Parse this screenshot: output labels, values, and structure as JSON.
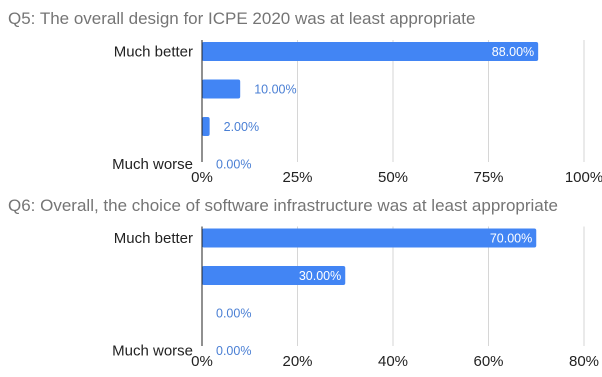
{
  "chart_data": [
    {
      "type": "bar",
      "orientation": "horizontal",
      "title": "Q5: The overall design for ICPE 2020 was at least appropriate",
      "categories": [
        "Much better",
        "",
        "",
        "Much worse"
      ],
      "values": [
        88,
        10,
        2,
        0
      ],
      "data_labels": [
        "88.00%",
        "10.00%",
        "2.00%",
        "0.00%"
      ],
      "xlim": [
        0,
        100
      ],
      "ticks": [
        0,
        25,
        50,
        75,
        100
      ],
      "tick_labels": [
        "0%",
        "25%",
        "50%",
        "75%",
        "100%"
      ],
      "bar_color": "#4285f4",
      "grid": true
    },
    {
      "type": "bar",
      "orientation": "horizontal",
      "title": "Q6: Overall, the choice of software infrastructure was at least appropriate",
      "categories": [
        "Much better",
        "",
        "",
        "Much worse"
      ],
      "values": [
        70,
        30,
        0,
        0
      ],
      "data_labels": [
        "70.00%",
        "30.00%",
        "0.00%",
        "0.00%"
      ],
      "xlim": [
        0,
        80
      ],
      "ticks": [
        0,
        20,
        40,
        60,
        80
      ],
      "tick_labels": [
        "0%",
        "20%",
        "40%",
        "60%",
        "80%"
      ],
      "bar_color": "#4285f4",
      "grid": true
    }
  ]
}
